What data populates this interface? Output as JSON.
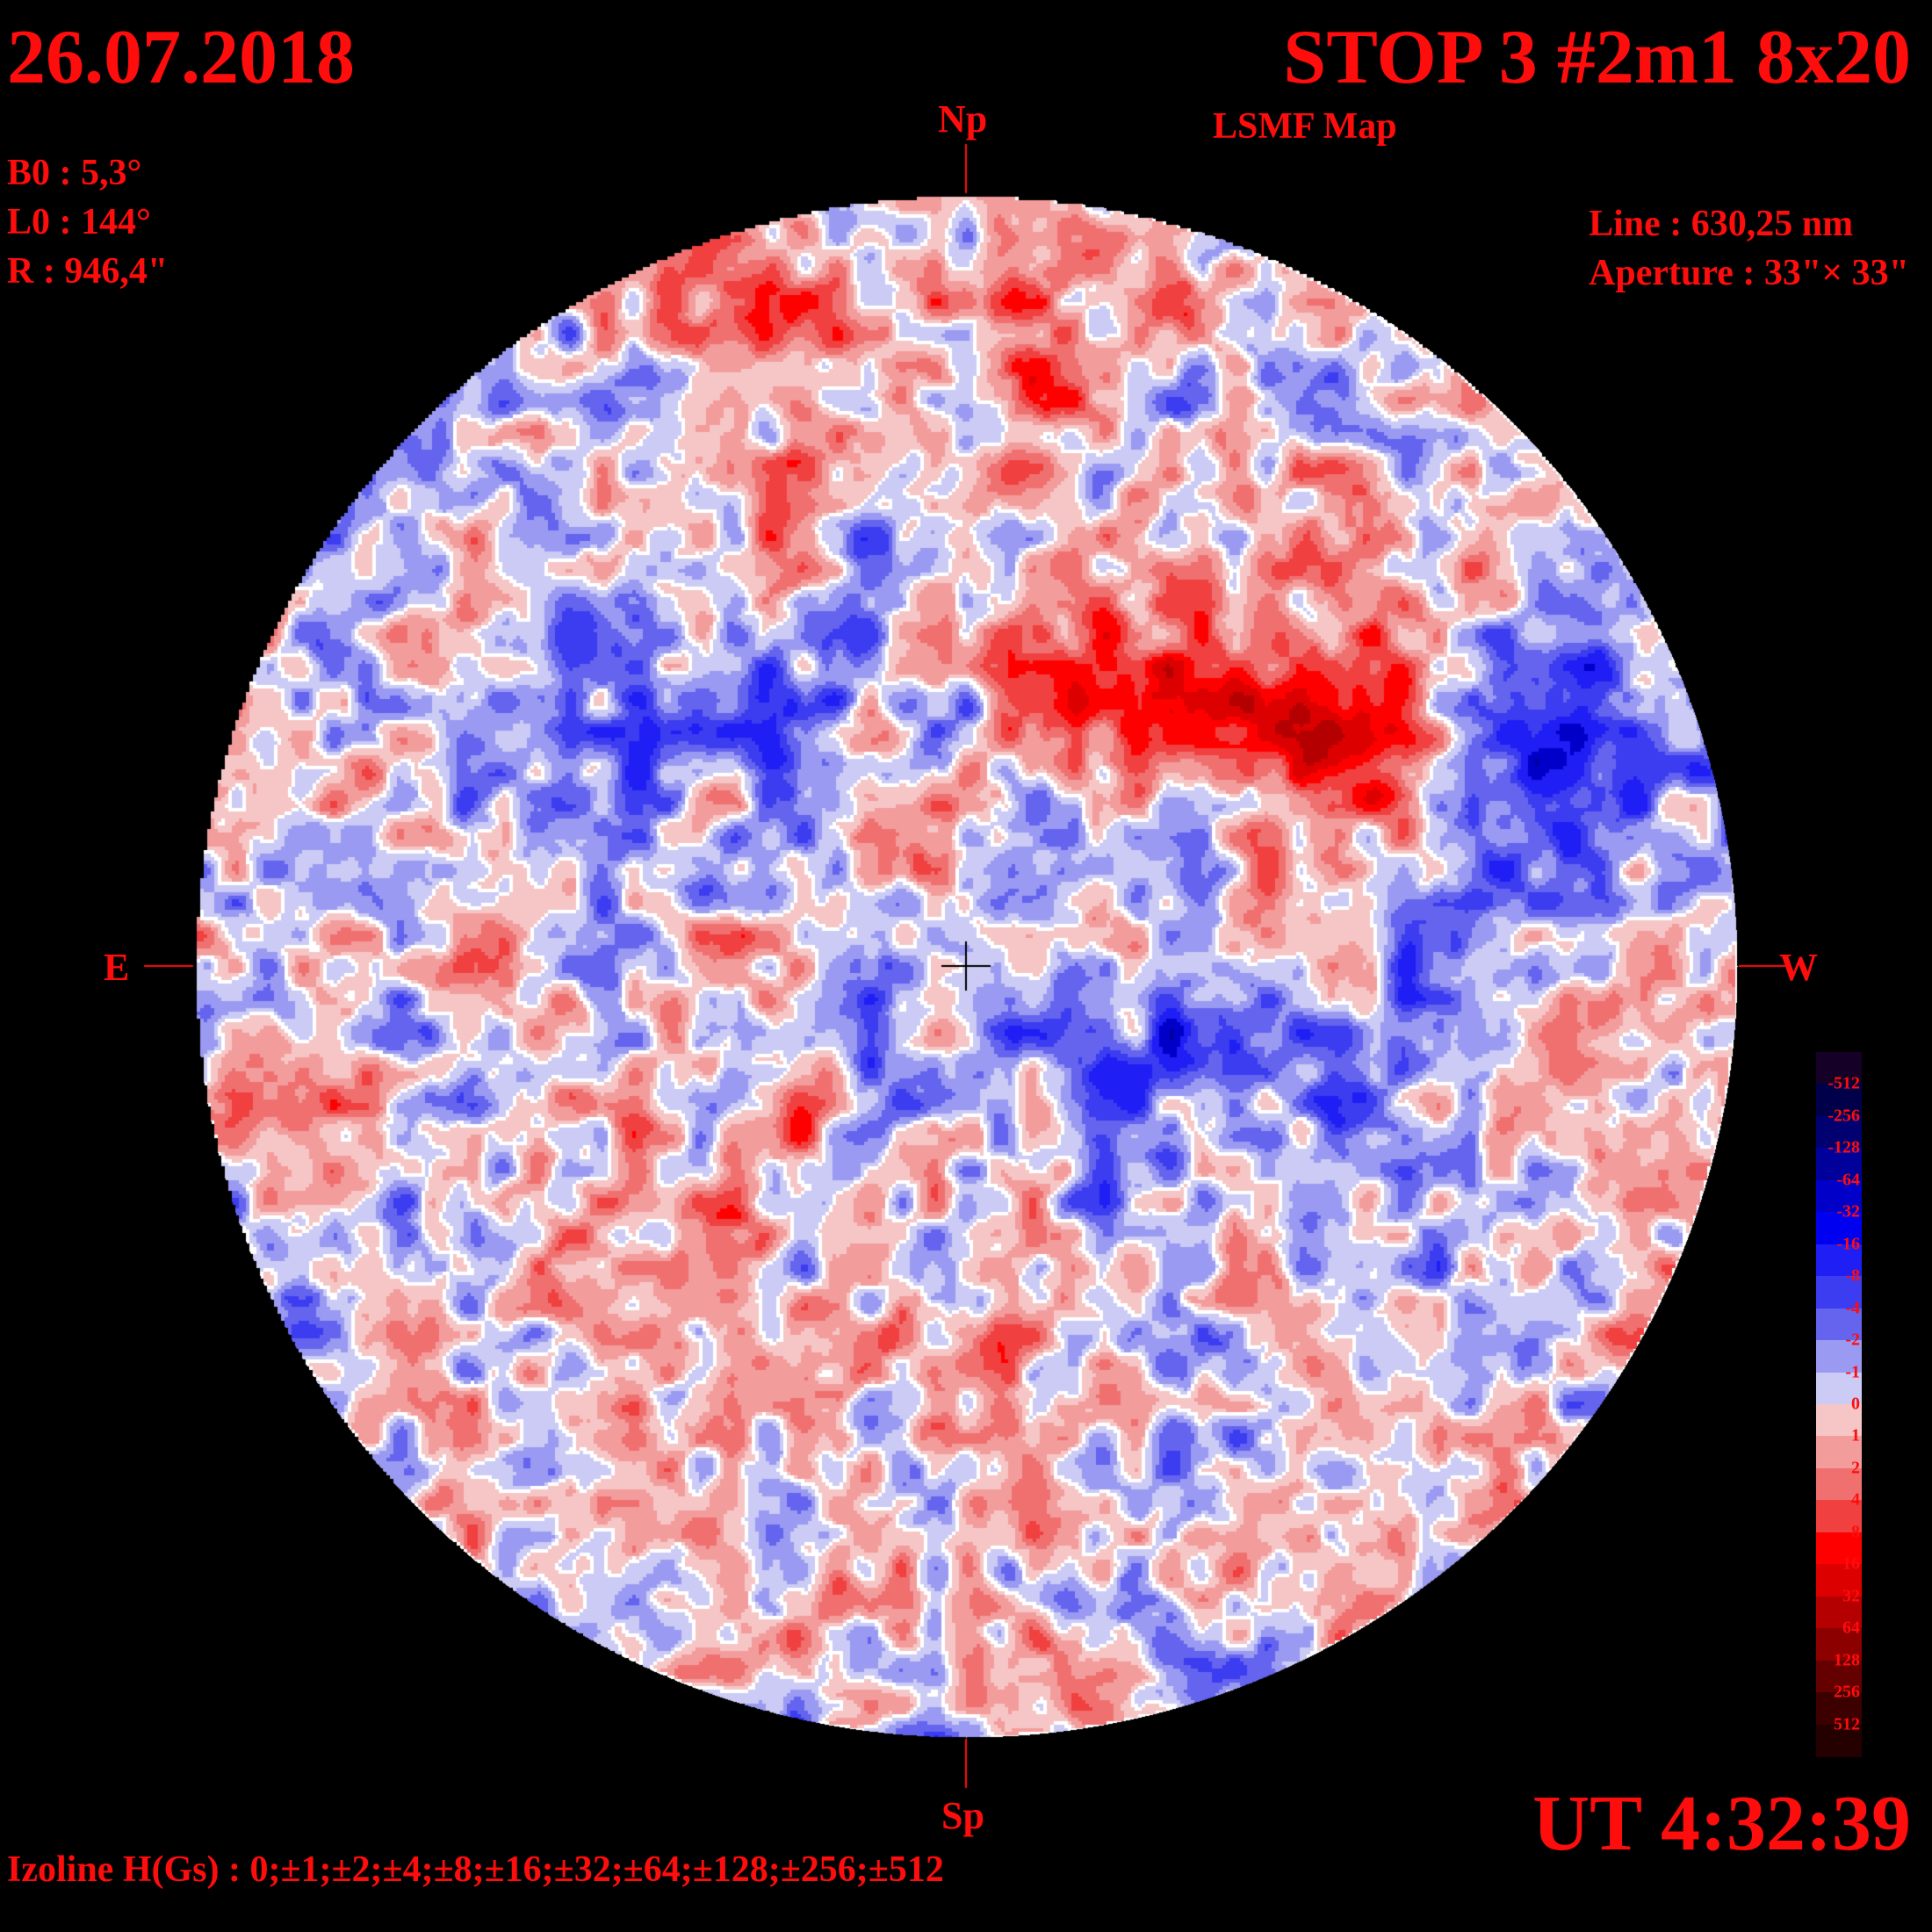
{
  "header": {
    "date": "26.07.2018",
    "title": "STOP 3 #2m1 8x20",
    "subtitle": "LSMF  Map"
  },
  "params": {
    "b0": "B0 : 5,3°",
    "l0": "L0 : 144°",
    "r": "R  : 946,4\""
  },
  "instrument": {
    "line": "Line :  630,25 nm",
    "aperture": "Aperture : 33\"× 33\""
  },
  "directions": {
    "north": "Np",
    "south": "Sp",
    "east": "E",
    "west": "W"
  },
  "time": "UT 4:32:39",
  "isolines": "Izoline H(Gs) : 0;±1;±2;±4;±8;±16;±32;±64;±128;±256;±512",
  "legend": {
    "labels": [
      "-512",
      "-256",
      "-128",
      "-64",
      "-32",
      "-16",
      "-8",
      "-4",
      "-2",
      "-1",
      "0",
      "1",
      "2",
      "4",
      "8",
      "16",
      "32",
      "64",
      "128",
      "256",
      "512"
    ],
    "colors": [
      "#150028",
      "#00004a",
      "#000070",
      "#00009a",
      "#0000c8",
      "#0000f0",
      "#1e1ef5",
      "#3c3cf0",
      "#6464ee",
      "#9a9af2",
      "#cbcbf5",
      "#f6c6c6",
      "#f39c9c",
      "#f07070",
      "#f04040",
      "#ff0000",
      "#dc0000",
      "#b40000",
      "#8c0000",
      "#640000",
      "#3c0000",
      "#240000"
    ]
  },
  "map_colors": {
    "negative": [
      "#cbcbf5",
      "#9a9af2",
      "#6464ee",
      "#3c3cf0",
      "#1e1ef5",
      "#0000c8",
      "#00009a"
    ],
    "positive": [
      "#f6c6c6",
      "#f39c9c",
      "#f07070",
      "#f04040",
      "#ff0000",
      "#dc0000",
      "#b40000"
    ],
    "zero_line": "#ffffff"
  }
}
